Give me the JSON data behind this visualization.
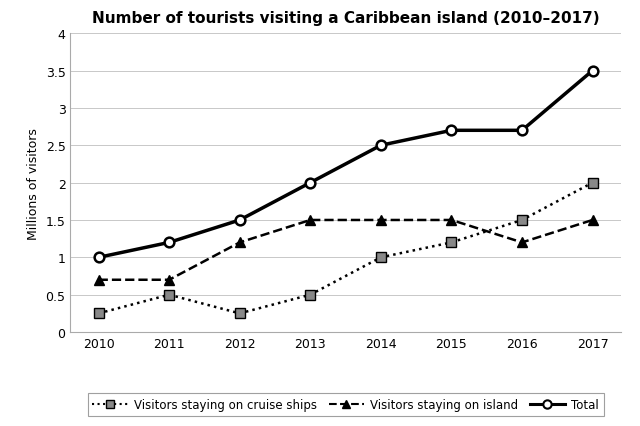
{
  "title": "Number of tourists visiting a Caribbean island (2010–2017)",
  "ylabel": "Millions of visitors",
  "years": [
    2010,
    2011,
    2012,
    2013,
    2014,
    2015,
    2016,
    2017
  ],
  "cruise_ships": [
    0.25,
    0.5,
    0.25,
    0.5,
    1.0,
    1.2,
    1.5,
    2.0
  ],
  "island": [
    0.7,
    0.7,
    1.2,
    1.5,
    1.5,
    1.5,
    1.2,
    1.5
  ],
  "total": [
    1.0,
    1.2,
    1.5,
    2.0,
    2.5,
    2.7,
    2.7,
    3.5
  ],
  "ylim": [
    0,
    4
  ],
  "yticks": [
    0,
    0.5,
    1.0,
    1.5,
    2.0,
    2.5,
    3.0,
    3.5,
    4.0
  ],
  "ytick_labels": [
    "0",
    "0.5",
    "1",
    "1.5",
    "2",
    "2.5",
    "3",
    "3.5",
    "4"
  ],
  "legend_labels": [
    "Visitors staying on cruise ships",
    "Visitors staying on island",
    "Total"
  ],
  "bg_color": "#ffffff",
  "line_color": "#000000",
  "marker_gray": "#888888"
}
